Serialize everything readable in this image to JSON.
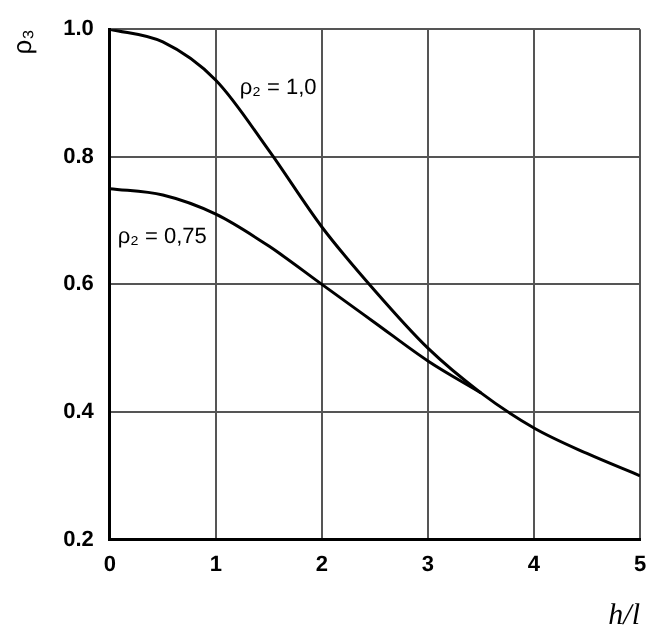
{
  "chart_data": {
    "type": "line",
    "xlabel": "h/l",
    "ylabel": "ρ₃",
    "xlim": [
      0,
      5
    ],
    "ylim": [
      0.2,
      1.0
    ],
    "xticks": [
      0,
      1,
      2,
      3,
      4,
      5
    ],
    "yticks": [
      0.2,
      0.4,
      0.6,
      0.8,
      {
        "value": 1.0,
        "label": "1.0"
      }
    ],
    "grid": true,
    "legend": false,
    "marker": "none",
    "line_style": "solid",
    "series": [
      {
        "name": "ρ₂ = 1,0",
        "color": "#000000",
        "x": [
          0,
          0.5,
          1,
          1.5,
          2,
          2.5,
          3,
          3.5,
          4,
          4.5,
          5
        ],
        "values": [
          1.0,
          0.98,
          0.92,
          0.81,
          0.69,
          0.59,
          0.5,
          0.43,
          0.375,
          0.335,
          0.3
        ]
      },
      {
        "name": "ρ₂ = 0,75",
        "color": "#000000",
        "x": [
          0,
          0.5,
          1,
          1.5,
          2,
          2.5,
          3,
          3.5
        ],
        "values": [
          0.75,
          0.74,
          0.71,
          0.66,
          0.6,
          0.54,
          0.48,
          0.43
        ]
      }
    ]
  }
}
